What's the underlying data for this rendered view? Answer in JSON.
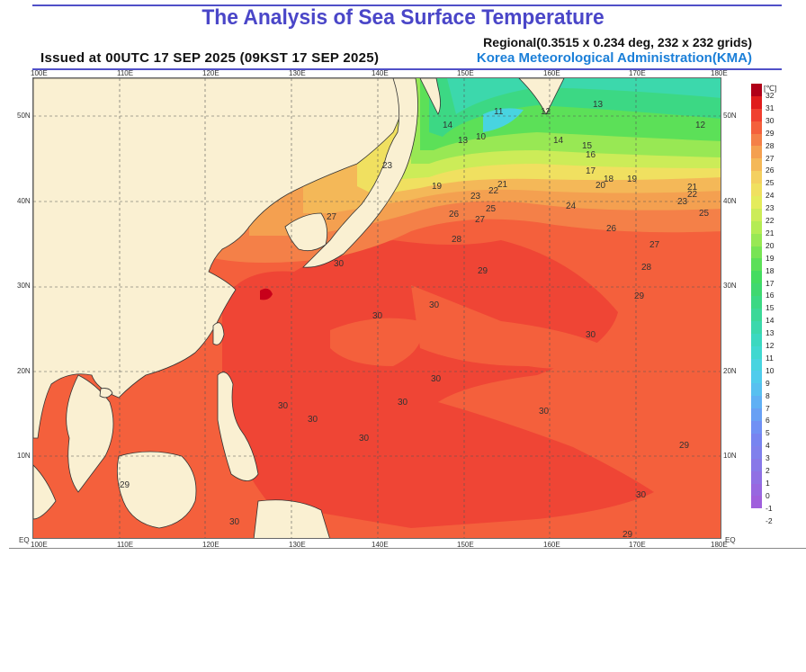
{
  "title": "The Analysis of Sea Surface Temperature",
  "issued": "Issued at    00UTC 17 SEP 2025 (09KST 17 SEP 2025)",
  "regional": "Regional(0.3515 x 0.234 deg, 232 x 232 grids)",
  "agency": "Korea Meteorological Administration(KMA)",
  "lon_labels": [
    "100E",
    "110E",
    "120E",
    "130E",
    "140E",
    "150E",
    "160E",
    "170E",
    "180E"
  ],
  "lat_labels": [
    "50N",
    "40N",
    "30N",
    "20N",
    "10N",
    "EQ"
  ],
  "colorbar": {
    "unit": "[℃]",
    "values": [
      "32",
      "31",
      "30",
      "29",
      "28",
      "27",
      "26",
      "25",
      "24",
      "23",
      "22",
      "21",
      "20",
      "19",
      "18",
      "17",
      "16",
      "15",
      "14",
      "13",
      "12",
      "11",
      "10",
      "9",
      "8",
      "7",
      "6",
      "5",
      "4",
      "3",
      "2",
      "1",
      "0",
      "-1",
      "-2"
    ],
    "colors": [
      "#b00018",
      "#e01c1c",
      "#f04030",
      "#f4603c",
      "#f48048",
      "#f4a050",
      "#f4b858",
      "#f4d060",
      "#f0e060",
      "#e4ec5c",
      "#ccec58",
      "#b4ec54",
      "#98e854",
      "#78e454",
      "#5ce058",
      "#44dc60",
      "#40d870",
      "#3cd884",
      "#3cd898",
      "#3cd8ac",
      "#3cd8c0",
      "#40d8d0",
      "#48d4e0",
      "#50ccec",
      "#58c0f0",
      "#60b0f4",
      "#68a0f4",
      "#7090f4",
      "#7884f0",
      "#8080ec",
      "#8878e8",
      "#9070e4",
      "#9868e0",
      "#a060dc"
    ]
  },
  "contour_labels": [
    "11",
    "12",
    "13",
    "14",
    "10",
    "15",
    "16",
    "17",
    "18",
    "19",
    "20",
    "21",
    "22",
    "23",
    "24",
    "25",
    "26",
    "27",
    "28",
    "29",
    "30"
  ]
}
